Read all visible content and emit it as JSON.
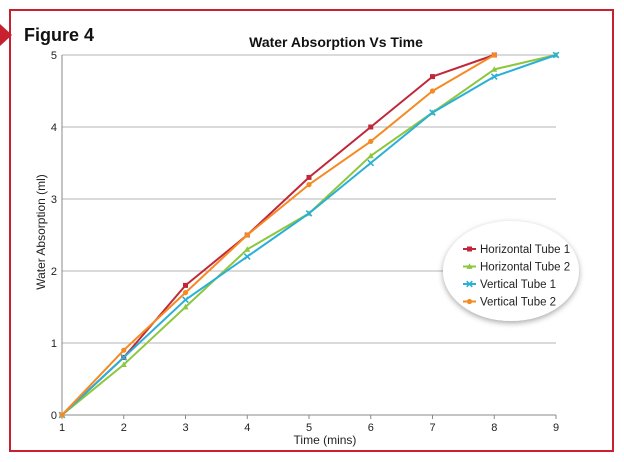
{
  "figure_label": "Figure 4",
  "colors": {
    "frame": "#c8202f",
    "horizontal_tube_1": "#c0283a",
    "horizontal_tube_2": "#8dc63f",
    "vertical_tube_1": "#2ab0d6",
    "vertical_tube_2": "#f58a22"
  },
  "chart_data": {
    "type": "line",
    "title": "Water Absorption Vs Time",
    "xlabel": "Time (mins)",
    "ylabel": "Water Absorption (ml)",
    "x": [
      1,
      2,
      3,
      4,
      5,
      6,
      7,
      8,
      9
    ],
    "xlim": [
      1,
      9
    ],
    "ylim": [
      0,
      5
    ],
    "x_ticks": [
      "1",
      "2",
      "3",
      "4",
      "5",
      "6",
      "7",
      "8",
      "9"
    ],
    "y_ticks": [
      "0",
      "1",
      "2",
      "3",
      "4",
      "5"
    ],
    "grid": true,
    "legend_position": "right",
    "series": [
      {
        "name": "Horizontal Tube 1",
        "color": "#c0283a",
        "marker": "square",
        "values": [
          0,
          0.8,
          1.8,
          2.5,
          3.3,
          4.0,
          4.7,
          5.0,
          null
        ]
      },
      {
        "name": "Horizontal Tube 2",
        "color": "#8dc63f",
        "marker": "triangle",
        "values": [
          0,
          0.7,
          1.5,
          2.3,
          2.8,
          3.6,
          4.2,
          4.8,
          5.0
        ]
      },
      {
        "name": "Vertical Tube 1",
        "color": "#2ab0d6",
        "marker": "x",
        "values": [
          0,
          0.8,
          1.6,
          2.2,
          2.8,
          3.5,
          4.2,
          4.7,
          5.0
        ]
      },
      {
        "name": "Vertical Tube 2",
        "color": "#f58a22",
        "marker": "circle",
        "values": [
          0,
          0.9,
          1.7,
          2.5,
          3.2,
          3.8,
          4.5,
          5.0,
          null
        ]
      }
    ]
  }
}
